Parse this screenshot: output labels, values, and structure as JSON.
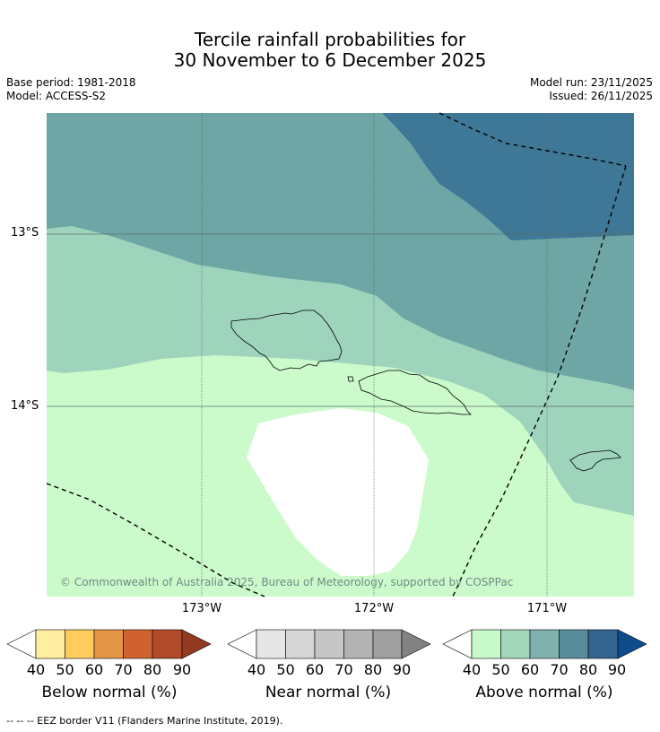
{
  "title": {
    "line1": "Tercile rainfall probabilities for",
    "line2": "30 November to 6 December 2025"
  },
  "meta": {
    "base_period": "Base period: 1981-2018",
    "model": "Model: ACCESS-S2",
    "model_run": "Model run: 23/11/2025",
    "issued": "Issued: 26/11/2025"
  },
  "map": {
    "lat_labels": [
      "13°S",
      "14°S"
    ],
    "lon_labels": [
      "173°W",
      "172°W",
      "171°W"
    ],
    "copyright": "© Commonwealth of Australia 2025, Bureau of Meteorology, supported by COSPPac",
    "colors": {
      "above_40": "#cbfbca",
      "above_50": "#9ed4bc",
      "above_60": "#6ea6a6",
      "above_70": "#3f7896",
      "land_outline": "#000000",
      "grid": "#5a6e6e"
    }
  },
  "colorbars": [
    {
      "label": "Below normal (%)",
      "ticks": [
        "40",
        "50",
        "60",
        "70",
        "80",
        "90"
      ],
      "colors": [
        "#ffeda0",
        "#fecc5c",
        "#e39544",
        "#cf622f",
        "#b14a28",
        "#923a22"
      ]
    },
    {
      "label": "Near normal (%)",
      "ticks": [
        "40",
        "50",
        "60",
        "70",
        "80",
        "90"
      ],
      "colors": [
        "#e6e6e6",
        "#d6d6d6",
        "#c6c6c6",
        "#b3b3b3",
        "#9f9f9f",
        "#828282"
      ]
    },
    {
      "label": "Above normal (%)",
      "ticks": [
        "40",
        "50",
        "60",
        "70",
        "80",
        "90"
      ],
      "colors": [
        "#c7f9c9",
        "#a2d6bb",
        "#7fb2ae",
        "#588e9c",
        "#33648f",
        "#0e4c8b"
      ]
    }
  ],
  "footer": "--  --  -- EEZ border V11 (Flanders Marine Institute, 2019)."
}
